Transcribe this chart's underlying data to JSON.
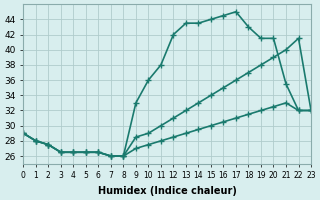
{
  "line1_x": [
    0,
    1,
    2,
    3,
    4,
    5,
    6,
    7,
    8,
    9,
    10,
    11,
    12,
    13,
    14,
    15,
    16,
    17,
    18,
    19,
    20,
    21,
    22,
    23
  ],
  "line1_y": [
    29,
    28,
    27.5,
    26.5,
    26.5,
    26.5,
    26.5,
    26,
    26,
    33,
    36,
    38,
    42,
    43.5,
    43.5,
    44,
    44.5,
    45,
    43,
    41.5,
    41.5,
    35.5,
    32,
    32
  ],
  "line2_x": [
    0,
    1,
    2,
    3,
    4,
    5,
    6,
    7,
    8,
    9,
    10,
    11,
    12,
    13,
    14,
    15,
    16,
    17,
    18,
    19,
    20,
    21,
    22,
    23
  ],
  "line2_y": [
    29,
    28,
    27.5,
    26.5,
    26.5,
    26.5,
    26.5,
    26,
    26,
    28.5,
    29,
    30,
    31,
    32,
    33,
    34,
    35,
    36,
    37,
    38,
    39,
    40,
    41.5,
    32
  ],
  "line3_x": [
    0,
    1,
    2,
    3,
    4,
    5,
    6,
    7,
    8,
    9,
    10,
    11,
    12,
    13,
    14,
    15,
    16,
    17,
    18,
    19,
    20,
    21,
    22,
    23
  ],
  "line3_y": [
    29,
    28,
    27.5,
    26.5,
    26.5,
    26.5,
    26.5,
    26,
    26,
    27,
    27.5,
    28,
    28.5,
    29,
    29.5,
    30,
    30.5,
    31,
    31.5,
    32,
    32.5,
    33,
    32,
    32
  ],
  "color": "#1a7a6e",
  "bg_color": "#d8eeee",
  "grid_color": "#b0cccc",
  "xlabel": "Humidex (Indice chaleur)",
  "ylim": [
    25,
    46
  ],
  "xlim": [
    0,
    23
  ],
  "yticks": [
    26,
    28,
    30,
    32,
    34,
    36,
    38,
    40,
    42,
    44
  ],
  "xticks": [
    0,
    1,
    2,
    3,
    4,
    5,
    6,
    7,
    8,
    9,
    10,
    11,
    12,
    13,
    14,
    15,
    16,
    17,
    18,
    19,
    20,
    21,
    22,
    23
  ],
  "xtick_labels": [
    "0",
    "1",
    "2",
    "3",
    "4",
    "5",
    "6",
    "7",
    "8",
    "9",
    "10",
    "11",
    "12",
    "13",
    "14",
    "15",
    "16",
    "17",
    "18",
    "19",
    "20",
    "21",
    "22",
    "23"
  ],
  "marker": "+",
  "markersize": 5,
  "linewidth": 1.2
}
